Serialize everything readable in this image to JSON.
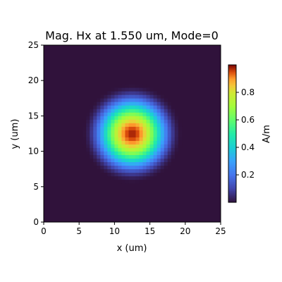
{
  "chart_data": {
    "type": "heatmap",
    "title": "Mag. Hx at 1.550 um, Mode=0",
    "xlabel": "x (um)",
    "ylabel": "y (um)",
    "xlim": [
      0,
      25
    ],
    "ylim": [
      0,
      25
    ],
    "x_ticks": [
      0,
      5,
      10,
      15,
      20,
      25
    ],
    "y_ticks": [
      0,
      5,
      10,
      15,
      20,
      25
    ],
    "colormap": "turbo",
    "colorbar": {
      "label": "A/m",
      "range": [
        0,
        1
      ],
      "ticks": [
        0.2,
        0.4,
        0.6,
        0.8
      ]
    },
    "field": {
      "shape": "circular gaussian-like mode profile",
      "center_x": 12.5,
      "center_y": 12.5,
      "peak_value": 0.98,
      "radius_to_zero": 7.0,
      "grid_resolution": 0.5
    }
  }
}
